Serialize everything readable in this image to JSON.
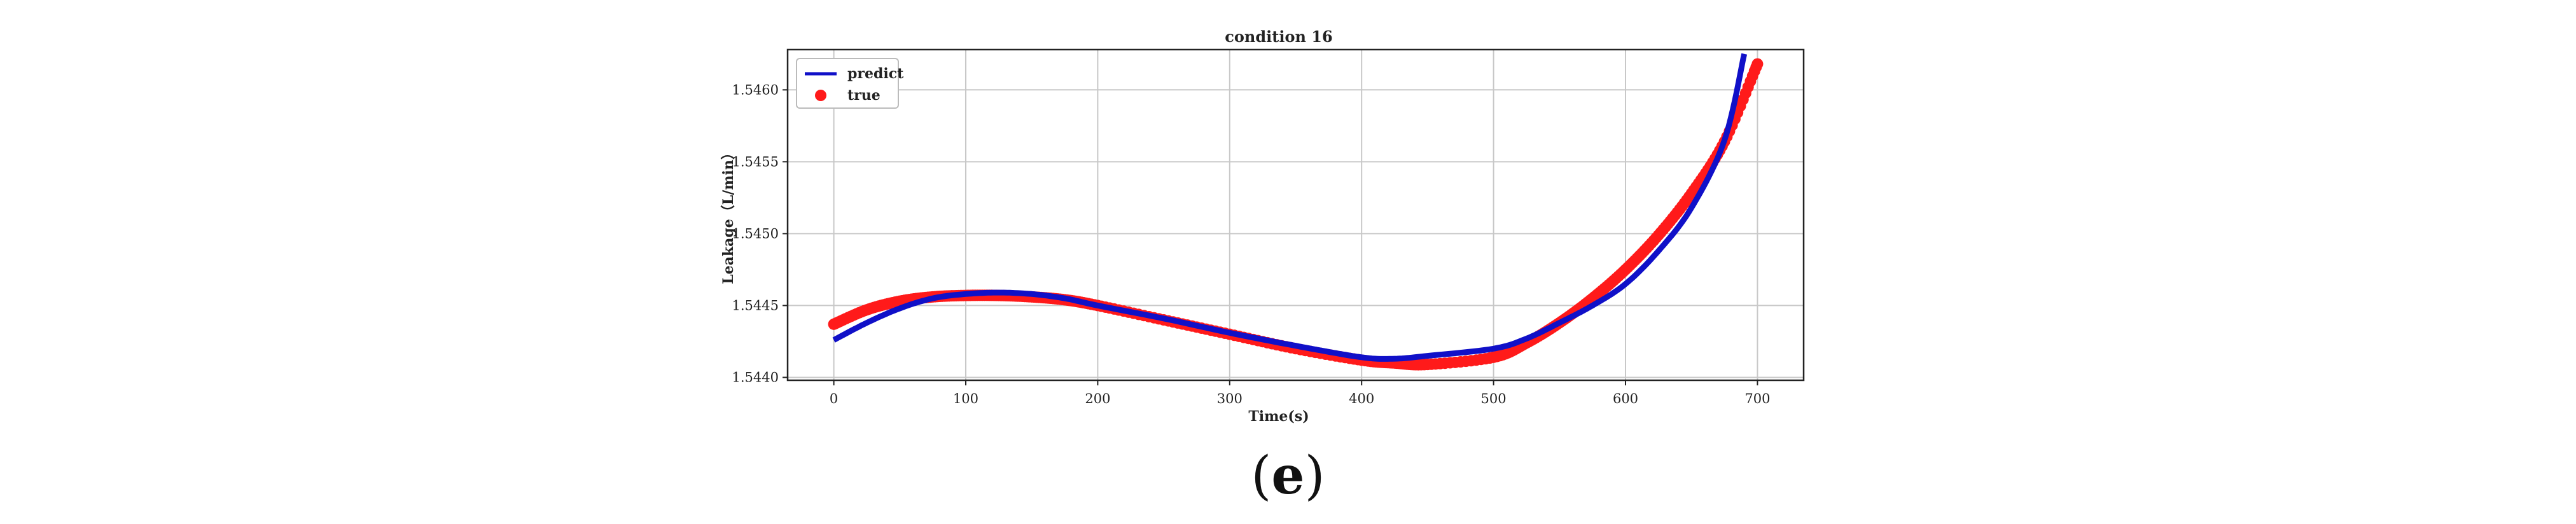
{
  "chart_data": {
    "type": "line",
    "title": "condition 16",
    "xlabel": "Time(s)",
    "ylabel": "Leakage（L/min）",
    "xlim": [
      -35,
      735
    ],
    "ylim": [
      1.54398,
      1.54628
    ],
    "xticks": [
      0,
      100,
      200,
      300,
      400,
      500,
      600,
      700
    ],
    "yticks": [
      1.544,
      1.5445,
      1.545,
      1.5455,
      1.546
    ],
    "ytick_labels": [
      "1.5440",
      "1.5445",
      "1.5450",
      "1.5455",
      "1.5460"
    ],
    "grid": true,
    "legend_position": "top-left",
    "series": [
      {
        "name": "predict",
        "kind": "line",
        "color": "#1010c8",
        "x": [
          0,
          25,
          50,
          75,
          100,
          125,
          150,
          175,
          200,
          250,
          300,
          350,
          400,
          425,
          450,
          500,
          525,
          550,
          575,
          600,
          625,
          650,
          675,
          690
        ],
        "y": [
          1.54426,
          1.54438,
          1.54448,
          1.54455,
          1.54458,
          1.54459,
          1.54458,
          1.54455,
          1.5445,
          1.54441,
          1.54431,
          1.54422,
          1.54414,
          1.54413,
          1.54415,
          1.5442,
          1.54427,
          1.54438,
          1.5445,
          1.54465,
          1.54488,
          1.54518,
          1.54565,
          1.54625
        ]
      },
      {
        "name": "true",
        "kind": "scatter",
        "color": "#ff1a1a",
        "x": [
          0,
          25,
          50,
          75,
          100,
          125,
          150,
          175,
          200,
          250,
          300,
          350,
          400,
          425,
          450,
          500,
          525,
          550,
          575,
          600,
          625,
          650,
          675,
          700
        ],
        "y": [
          1.54437,
          1.54447,
          1.54453,
          1.54456,
          1.54457,
          1.54457,
          1.54456,
          1.54454,
          1.5445,
          1.5444,
          1.5443,
          1.5442,
          1.54412,
          1.5441,
          1.54409,
          1.54414,
          1.54424,
          1.54438,
          1.54455,
          1.54475,
          1.54499,
          1.54528,
          1.54564,
          1.54618
        ]
      }
    ]
  },
  "caption": {
    "open": "(",
    "letter": "e",
    "close": ")"
  }
}
